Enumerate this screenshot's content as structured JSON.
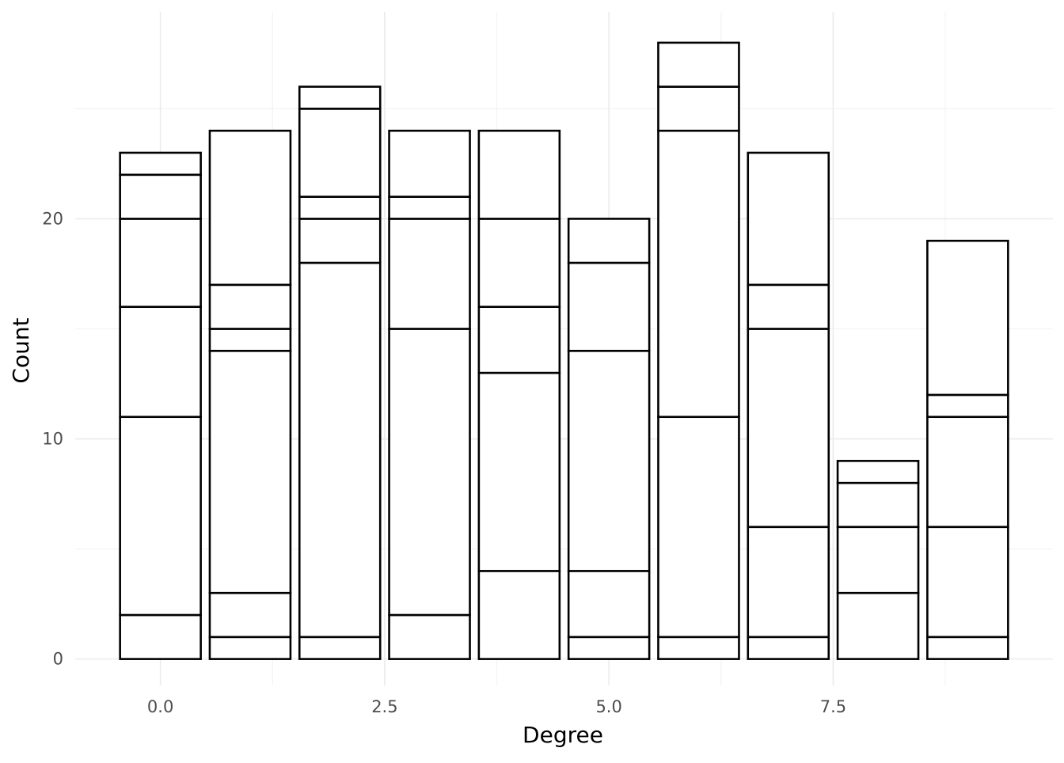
{
  "chart_data": {
    "type": "bar",
    "stacked": true,
    "xlabel": "Degree",
    "ylabel": "Count",
    "x_ticks": [
      "0.0",
      "2.5",
      "5.0",
      "7.5"
    ],
    "x_tick_values": [
      0,
      2.5,
      5,
      7.5
    ],
    "y_ticks": [
      "0",
      "10",
      "20"
    ],
    "y_tick_values": [
      0,
      10,
      20
    ],
    "xlim": [
      -0.95,
      9.95
    ],
    "ylim": [
      -1.2,
      29.4
    ],
    "bar_width": 0.9,
    "grid": true,
    "fill_color": "#ffffff",
    "outline_color": "#000000",
    "categories": [
      0,
      1,
      2,
      3,
      4,
      5,
      6,
      7,
      8,
      9
    ],
    "stack_boundaries": [
      [
        0,
        2,
        11,
        16,
        20,
        22,
        23
      ],
      [
        0,
        1,
        3,
        14,
        15,
        17,
        24
      ],
      [
        0,
        1,
        18,
        20,
        21,
        25,
        26
      ],
      [
        0,
        2,
        15,
        20,
        21,
        24
      ],
      [
        0,
        4,
        13,
        16,
        20,
        24
      ],
      [
        0,
        1,
        4,
        14,
        18,
        20
      ],
      [
        0,
        1,
        11,
        24,
        26,
        28
      ],
      [
        0,
        1,
        6,
        15,
        17,
        23
      ],
      [
        0,
        3,
        6,
        8,
        9
      ],
      [
        0,
        1,
        6,
        11,
        12,
        19
      ]
    ],
    "totals": [
      23,
      24,
      26,
      24,
      24,
      20,
      28,
      23,
      9,
      19
    ]
  }
}
